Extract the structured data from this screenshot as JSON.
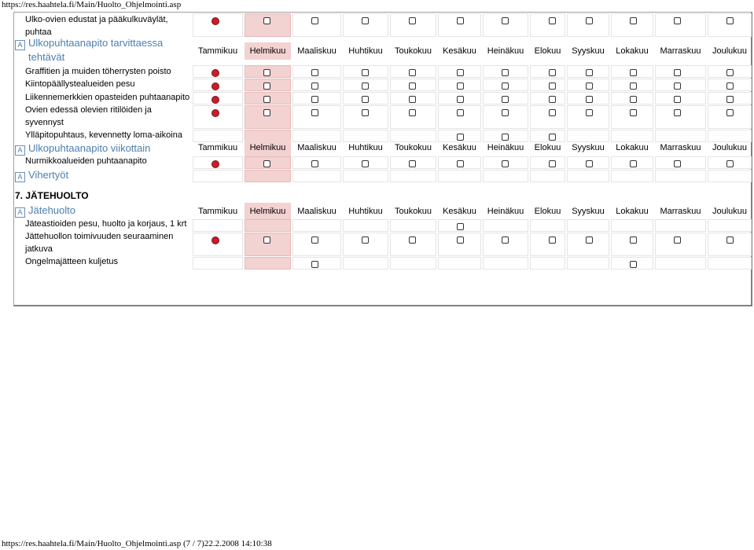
{
  "page": {
    "header_url": "https://res.haahtela.fi/Main/Huolto_Ohjelmointi.asp",
    "footer": "https://res.haahtela.fi/Main/Huolto_Ohjelmointi.asp (7 / 7)22.2.2008 14:10:38"
  },
  "months": [
    "Tammikuu",
    "Helmikuu",
    "Maaliskuu",
    "Huhtikuu",
    "Toukokuu",
    "Kesäkuu",
    "Heinäkuu",
    "Elokuu",
    "Syyskuu",
    "Lokakuu",
    "Marraskuu",
    "Joulukuu"
  ],
  "rows": {
    "r1": "Ulko-ovien edustat ja pääkulkuväylät, puhtaa",
    "g1": "Ulkopuhtaanapito tarvittaessa tehtävät",
    "r2": "Graffitien ja muiden töherrysten poisto",
    "r3": "Kiintopäällystealueiden pesu",
    "r4": "Liikennemerkkien opasteiden puhtaanapito",
    "r5": "Ovien edessä olevien ritilöiden ja syvennyst",
    "r6": "Ylläpitopuhtaus, kevennetty loma-aikoina",
    "g2": "Ulkopuhtaanapito viikottain",
    "r7": "Nurmikkoalueiden puhtaanapito",
    "g3": "Vihertyöt",
    "sec7": "7. JÄTEHUOLTO",
    "g4": "Jätehuolto",
    "r8": "Jäteastioiden pesu, huolto ja korjaus, 1 krt",
    "r9": "Jättehuollon toimivuuden seuraaminen jatkuva",
    "r10": "Ongelmajätteen kuljetus"
  },
  "icon_names": {
    "group": "a-icon",
    "selected": "red-radio-icon",
    "empty": "empty-checkbox-icon"
  },
  "colors": {
    "feb_highlight": "#f3d2d2",
    "group_link": "#4a7fb0",
    "red_dot": "#d0192b"
  }
}
